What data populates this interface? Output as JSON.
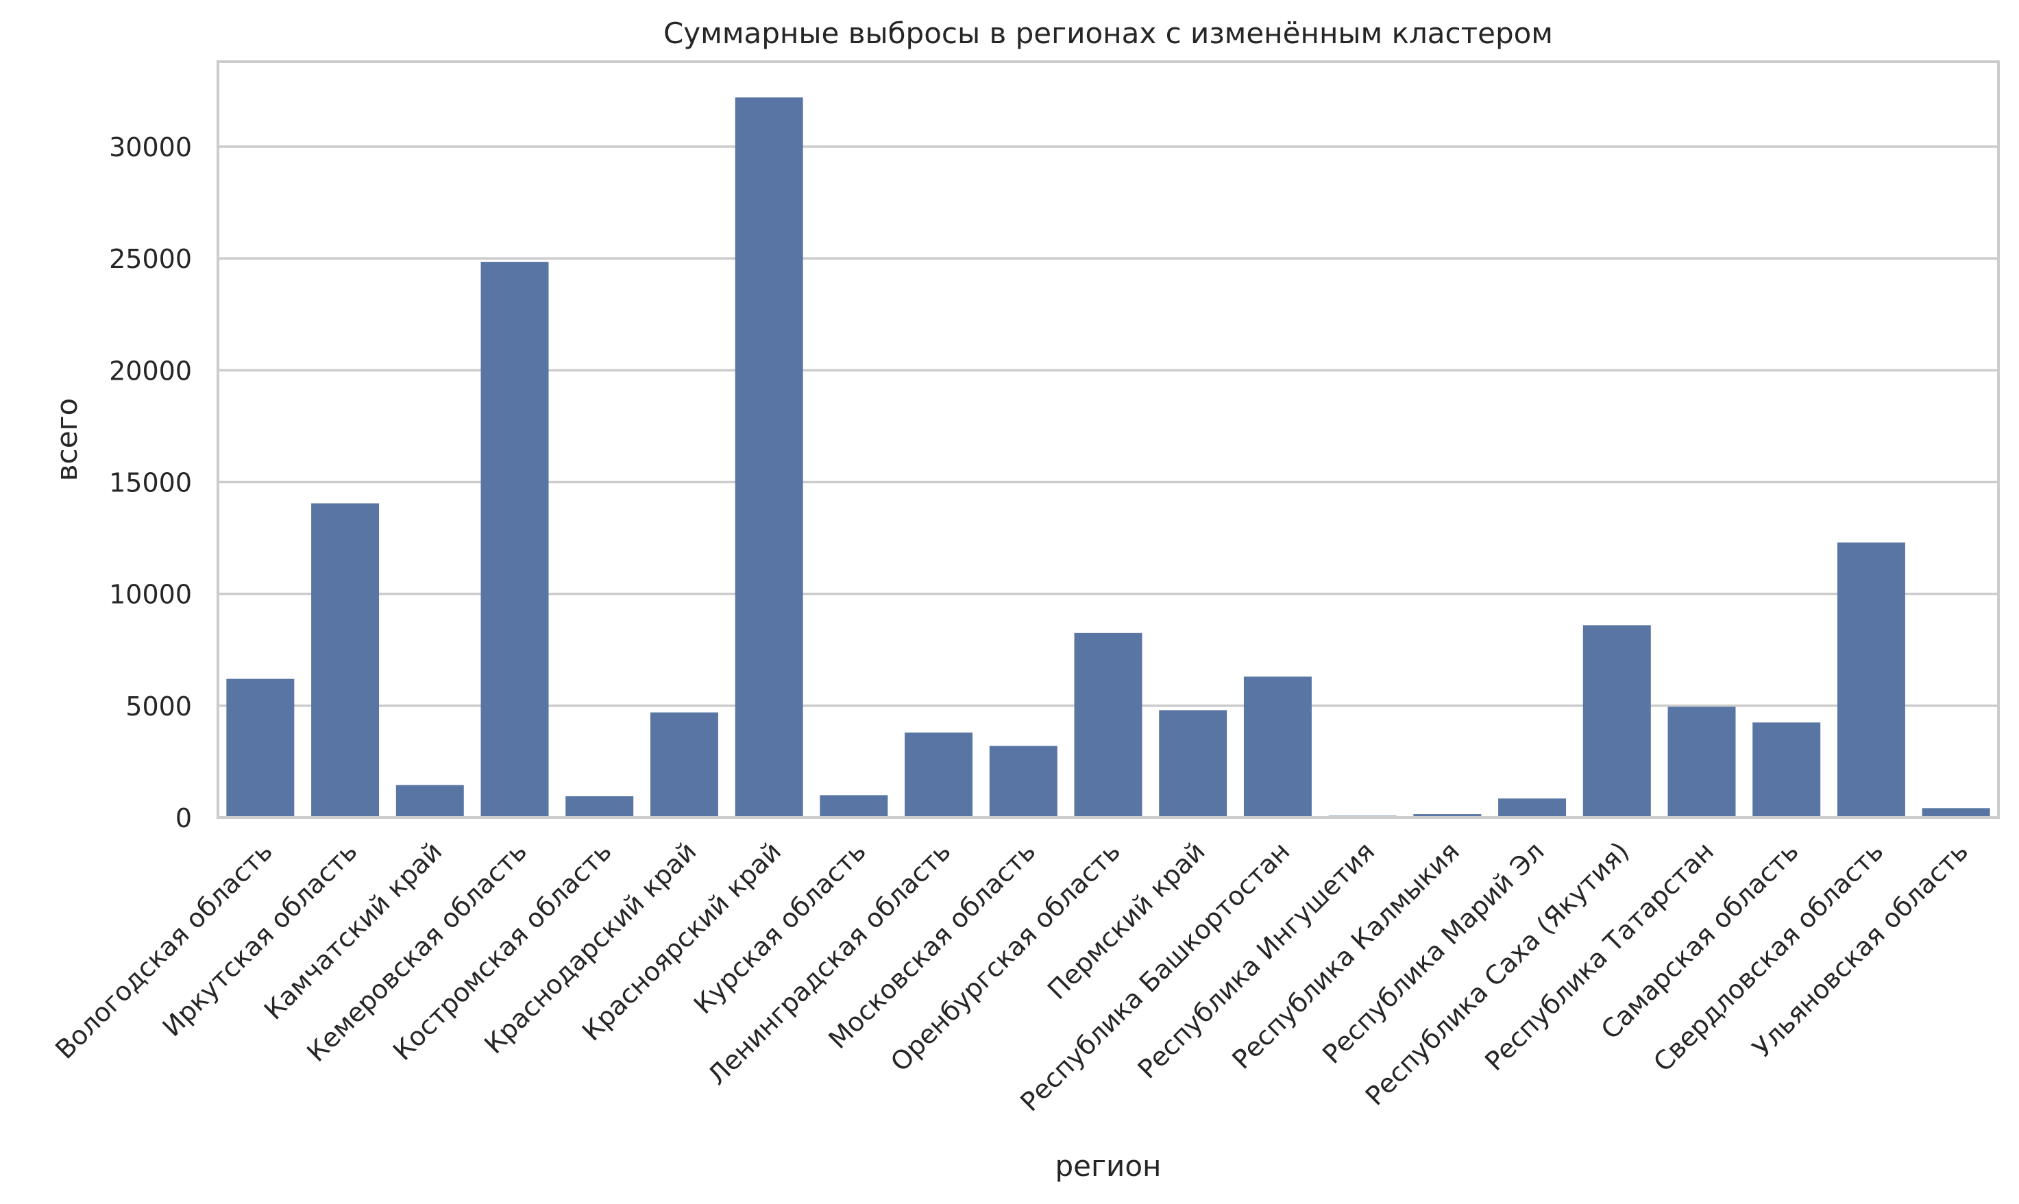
{
  "chart_data": {
    "type": "bar",
    "title": "Суммарные выбросы в регионах с изменённым кластером",
    "xlabel": "регион",
    "ylabel": "всего",
    "ylim": [
      0,
      33800
    ],
    "yticks": [
      0,
      5000,
      10000,
      15000,
      20000,
      25000,
      30000
    ],
    "grid": true,
    "bar_color": "#5975a4",
    "categories": [
      "Вологодская область",
      "Иркутская область",
      "Камчатский край",
      "Кемеровская область",
      "Костромская область",
      "Краснодарский край",
      "Красноярский край",
      "Курская область",
      "Ленинградская область",
      "Московская область",
      "Оренбургская область",
      "Пермский край",
      "Республика Башкортостан",
      "Республика Ингушетия",
      "Республика Калмыкия",
      "Республика Марий Эл",
      "Республика Саха (Якутия)",
      "Республика Татарстан",
      "Самарская область",
      "Свердловская область",
      "Ульяновская область"
    ],
    "values": [
      6200,
      14050,
      1450,
      24850,
      950,
      4700,
      32200,
      1000,
      3800,
      3200,
      8250,
      4800,
      6300,
      80,
      150,
      850,
      8600,
      4950,
      4250,
      12300,
      420
    ]
  }
}
